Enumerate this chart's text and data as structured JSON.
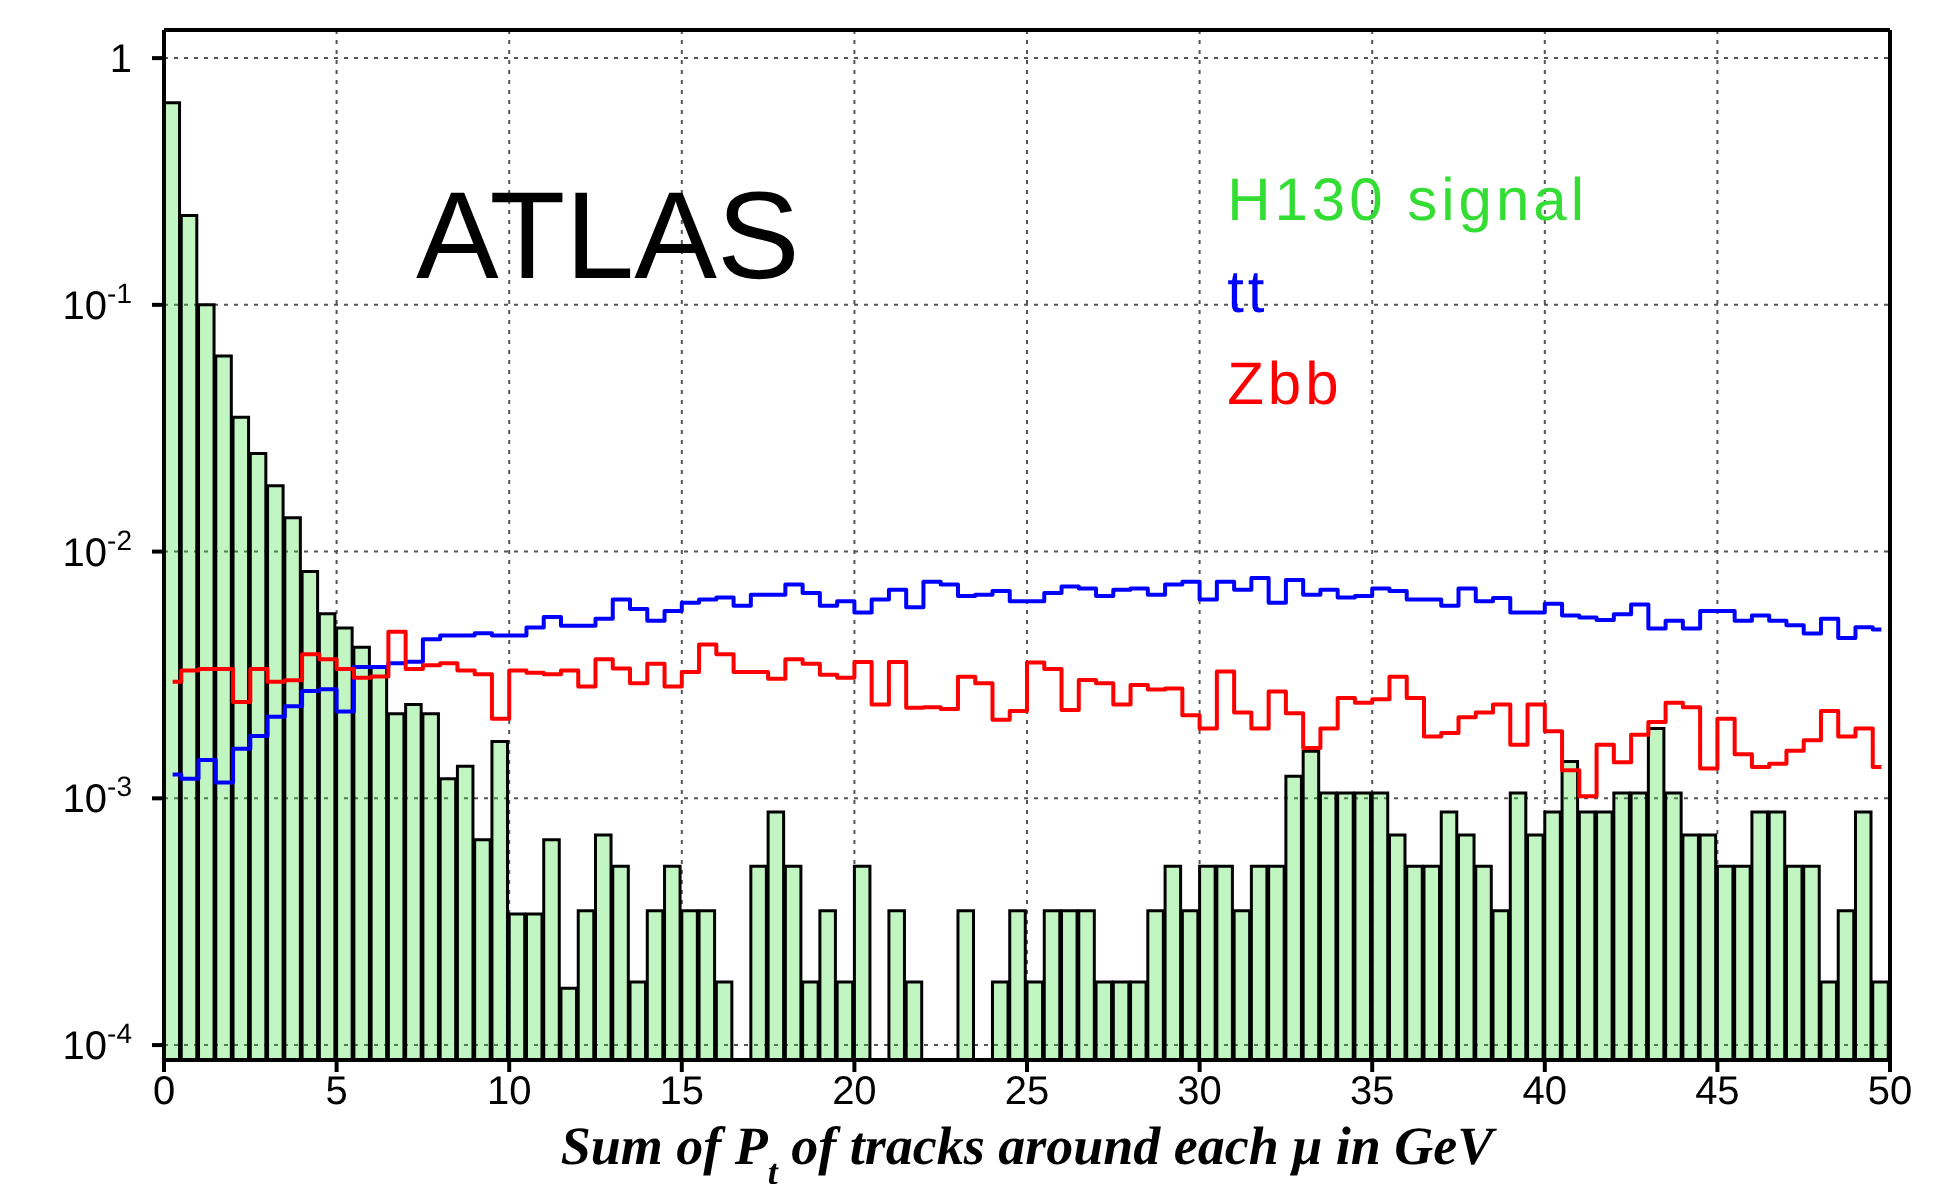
{
  "chart_data": {
    "type": "histogram",
    "xlabel": "Sum of P$_{t}$ of tracks around each μ in GeV",
    "annotations": [
      "ATLAS"
    ],
    "bins": [
      0,
      0.5,
      1,
      1.5,
      2,
      2.5,
      3,
      3.5,
      4,
      4.5,
      5,
      5.5,
      6,
      6.5,
      7,
      7.5,
      8,
      8.5,
      9,
      9.5,
      10,
      10.5,
      11,
      11.5,
      12,
      12.5,
      13,
      13.5,
      14,
      14.5,
      15,
      15.5,
      16,
      16.5,
      17,
      17.5,
      18,
      18.5,
      19,
      19.5,
      20,
      20.5,
      21,
      21.5,
      22,
      22.5,
      23,
      23.5,
      24,
      24.5,
      25,
      25.5,
      26,
      26.5,
      27,
      27.5,
      28,
      28.5,
      29,
      29.5,
      30,
      30.5,
      31,
      31.5,
      32,
      32.5,
      33,
      33.5,
      34,
      34.5,
      35,
      35.5,
      36,
      36.5,
      37,
      37.5,
      38,
      38.5,
      39,
      39.5,
      40,
      40.5,
      41,
      41.5,
      42,
      42.5,
      43,
      43.5,
      44,
      44.5,
      45,
      45.5,
      46,
      46.5,
      47,
      47.5,
      48,
      48.5,
      49,
      49.5,
      50
    ],
    "series": [
      {
        "name": "H130 signal",
        "color": "#33dd33",
        "values": [
          0.66,
          0.23,
          0.1,
          0.062,
          0.035,
          0.025,
          0.0185,
          0.0137,
          0.0083,
          0.0056,
          0.0049,
          0.0041,
          0.0034,
          0.0022,
          0.0024,
          0.0022,
          0.0012,
          0.00135,
          0.00068,
          0.0017,
          0.00034,
          0.00034,
          0.00068,
          0.00017,
          0.00035,
          0.00071,
          0.00053,
          0.00018,
          0.00035,
          0.00053,
          0.00035,
          0.00035,
          0.00018,
          null,
          0.00053,
          0.00088,
          0.00053,
          0.00018,
          0.00035,
          0.00018,
          0.00053,
          null,
          0.00035,
          0.00018,
          null,
          null,
          0.00035,
          null,
          0.00018,
          0.00035,
          0.00018,
          0.00035,
          0.00035,
          0.00035,
          0.00018,
          0.00018,
          0.00018,
          0.00035,
          0.00053,
          0.00035,
          0.00053,
          0.00053,
          0.00035,
          0.00053,
          0.00053,
          0.00123,
          0.00155,
          0.00105,
          0.00105,
          0.00105,
          0.00105,
          0.00071,
          0.00053,
          0.00053,
          0.00088,
          0.00071,
          0.00053,
          0.00035,
          0.00105,
          0.00071,
          0.00088,
          0.00141,
          0.00088,
          0.00088,
          0.00105,
          0.00105,
          0.00192,
          0.00105,
          0.00071,
          0.00071,
          0.00053,
          0.00053,
          0.00088,
          0.00088,
          0.00053,
          0.00053,
          0.00018,
          0.00035,
          0.00088,
          0.00018
        ]
      },
      {
        "name": "tt",
        "type": "step",
        "color": "#0000ff",
        "x": [
          0.25,
          0.75,
          1.25,
          1.75,
          2.25,
          2.75,
          3.25,
          3.75,
          4.25,
          4.75,
          5.25,
          5.75,
          6.25,
          6.75,
          7.25,
          7.75,
          8.25,
          8.75,
          9.25,
          9.75,
          10.25,
          10.75,
          11.25,
          11.75,
          12.25,
          12.75,
          13.25,
          13.75,
          14.25,
          14.75,
          15.25,
          15.75,
          16.25,
          16.75,
          17.25,
          17.75,
          18.25,
          18.75,
          19.25,
          19.75,
          20.25,
          20.75,
          21.25,
          21.75,
          22.25,
          22.75,
          23.25,
          23.75,
          24.25,
          24.75,
          25.25,
          25.75,
          26.25,
          26.75,
          27.25,
          27.75,
          28.25,
          28.75,
          29.25,
          29.75,
          30.25,
          30.75,
          31.25,
          31.75,
          32.25,
          32.75,
          33.25,
          33.75,
          34.25,
          34.75,
          35.25,
          35.75,
          36.25,
          36.75,
          37.25,
          37.75,
          38.25,
          38.75,
          39.25,
          39.75,
          40.25,
          40.75,
          41.25,
          41.75,
          42.25,
          42.75,
          43.25,
          43.75,
          44.25,
          44.75,
          45.25,
          45.75,
          46.25,
          46.75,
          47.25,
          47.75,
          48.25,
          48.75,
          49.25,
          49.75
        ],
        "values": [
          0.00125,
          0.0012,
          0.00143,
          0.00116,
          0.00159,
          0.00179,
          0.00214,
          0.00236,
          0.00272,
          0.00277,
          0.00225,
          0.00341,
          0.00341,
          0.00353,
          0.00358,
          0.00441,
          0.00457,
          0.00457,
          0.00467,
          0.00457,
          0.00457,
          0.00493,
          0.00543,
          0.005,
          0.005,
          0.00534,
          0.0064,
          0.00585,
          0.00525,
          0.00574,
          0.00621,
          0.0064,
          0.00652,
          0.00603,
          0.00668,
          0.00668,
          0.00736,
          0.0068,
          0.00603,
          0.00629,
          0.00567,
          0.0064,
          0.00701,
          0.00595,
          0.00754,
          0.00736,
          0.0066,
          0.00668,
          0.00693,
          0.00629,
          0.00629,
          0.0068,
          0.00722,
          0.00709,
          0.0066,
          0.00701,
          0.00709,
          0.00668,
          0.00736,
          0.00754,
          0.0064,
          0.00754,
          0.00701,
          0.00781,
          0.00621,
          0.00767,
          0.00668,
          0.00701,
          0.00652,
          0.0066,
          0.00709,
          0.00693,
          0.0064,
          0.0064,
          0.00603,
          0.00709,
          0.00629,
          0.00648,
          0.00567,
          0.00567,
          0.00614,
          0.00551,
          0.00541,
          0.00528,
          0.00557,
          0.00611,
          0.00488,
          0.00525,
          0.00488,
          0.00574,
          0.00574,
          0.00525,
          0.00551,
          0.00525,
          0.00503,
          0.00466,
          0.00534,
          0.00447,
          0.00494,
          0.00483
        ]
      },
      {
        "name": "Zbb",
        "type": "step",
        "color": "#ff0000",
        "x": [
          0.25,
          0.75,
          1.25,
          1.75,
          2.25,
          2.75,
          3.25,
          3.75,
          4.25,
          4.75,
          5.25,
          5.75,
          6.25,
          6.75,
          7.25,
          7.75,
          8.25,
          8.75,
          9.25,
          9.75,
          10.25,
          10.75,
          11.25,
          11.75,
          12.25,
          12.75,
          13.25,
          13.75,
          14.25,
          14.75,
          15.25,
          15.75,
          16.25,
          16.75,
          17.25,
          17.75,
          18.25,
          18.75,
          19.25,
          19.75,
          20.25,
          20.75,
          21.25,
          21.75,
          22.25,
          22.75,
          23.25,
          23.75,
          24.25,
          24.75,
          25.25,
          25.75,
          26.25,
          26.75,
          27.25,
          27.75,
          28.25,
          28.75,
          29.25,
          29.75,
          30.25,
          30.75,
          31.25,
          31.75,
          32.25,
          32.75,
          33.25,
          33.75,
          34.25,
          34.75,
          35.25,
          35.75,
          36.25,
          36.75,
          37.25,
          37.75,
          38.25,
          38.75,
          39.25,
          39.75,
          40.25,
          40.75,
          41.25,
          41.75,
          42.25,
          42.75,
          43.25,
          43.75,
          44.25,
          44.75,
          45.25,
          45.75,
          46.25,
          46.75,
          47.25,
          47.75,
          48.25,
          48.75,
          49.25,
          49.75
        ],
        "values": [
          0.00297,
          0.0033,
          0.00334,
          0.00334,
          0.00246,
          0.00334,
          0.00297,
          0.00301,
          0.00384,
          0.00366,
          0.00334,
          0.00308,
          0.00312,
          0.00473,
          0.00334,
          0.00346,
          0.00353,
          0.0033,
          0.00318,
          0.0021,
          0.0033,
          0.00323,
          0.00318,
          0.0033,
          0.00284,
          0.00366,
          0.00336,
          0.00293,
          0.00351,
          0.00284,
          0.00325,
          0.0042,
          0.00384,
          0.00325,
          0.00325,
          0.00305,
          0.00366,
          0.00351,
          0.00317,
          0.00308,
          0.00357,
          0.0024,
          0.00357,
          0.00233,
          0.00234,
          0.0023,
          0.00311,
          0.00293,
          0.00208,
          0.00226,
          0.00355,
          0.00334,
          0.00228,
          0.00302,
          0.00293,
          0.0024,
          0.00288,
          0.00276,
          0.00279,
          0.00217,
          0.00192,
          0.00327,
          0.00223,
          0.00192,
          0.00271,
          0.00221,
          0.0016,
          0.00192,
          0.00255,
          0.00244,
          0.00252,
          0.00311,
          0.00255,
          0.00178,
          0.00184,
          0.00213,
          0.00223,
          0.0024,
          0.00165,
          0.0024,
          0.00187,
          0.0013,
          0.00102,
          0.00165,
          0.0014,
          0.00181,
          0.00204,
          0.00244,
          0.00234,
          0.00132,
          0.0021,
          0.00151,
          0.00134,
          0.00138,
          0.00156,
          0.00172,
          0.00226,
          0.00178,
          0.00192,
          0.00134
        ]
      }
    ],
    "xlim": [
      0,
      50
    ],
    "xticks": [
      0,
      5,
      10,
      15,
      20,
      25,
      30,
      35,
      40,
      45,
      50
    ],
    "ylim": [
      8.7e-05,
      1.3
    ],
    "yticks": [
      {
        "value": 0.0001,
        "label": "10$^{-4}$"
      },
      {
        "value": 0.001,
        "label": "10$^{-3}$"
      },
      {
        "value": 0.01,
        "label": "10$^{-2}$"
      },
      {
        "value": 0.1,
        "label": "10$^{-1}$"
      },
      1
    ],
    "log": "y",
    "grid": true,
    "legend": "top right"
  }
}
